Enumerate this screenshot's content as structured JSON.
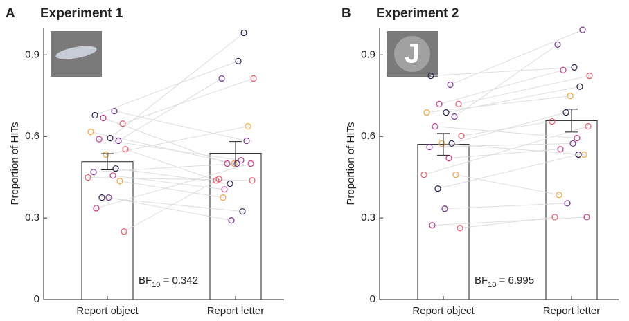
{
  "chart_data": [
    {
      "type": "bar",
      "panel": "A",
      "title": "Experiment 1",
      "ylabel": "Proportion of HITs",
      "categories": [
        "Report object",
        "Report letter"
      ],
      "values": [
        0.507,
        0.538
      ],
      "errors": [
        0.03,
        0.043
      ],
      "ylim": [
        0,
        1
      ],
      "yticks": [
        0,
        0.3,
        0.6,
        0.9
      ],
      "pairs": [
        [
          0.678,
          0.877
        ],
        [
          0.693,
          0.584
        ],
        [
          0.668,
          0.5
        ],
        [
          0.647,
          0.813
        ],
        [
          0.617,
          0.5
        ],
        [
          0.594,
          0.981
        ],
        [
          0.584,
          0.813
        ],
        [
          0.59,
          0.512
        ],
        [
          0.553,
          0.438
        ],
        [
          0.533,
          0.637
        ],
        [
          0.482,
          0.426
        ],
        [
          0.469,
          0.5
        ],
        [
          0.456,
          0.405
        ],
        [
          0.449,
          0.438
        ],
        [
          0.436,
          0.375
        ],
        [
          0.375,
          0.324
        ],
        [
          0.375,
          0.291
        ],
        [
          0.336,
          0.5
        ],
        [
          0.25,
          0.443
        ]
      ],
      "point_colors": [
        "#2b1d4f",
        "#7b3294",
        "#c2378a",
        "#e8566a",
        "#f5a03a"
      ],
      "bf_label": "BF",
      "bf_subscript": "10",
      "bf_value": " = 0.342"
    },
    {
      "type": "bar",
      "panel": "B",
      "title": "Experiment 2",
      "ylabel": "Proportion of HITs",
      "categories": [
        "Report object",
        "Report letter"
      ],
      "values": [
        0.571,
        0.658
      ],
      "errors": [
        0.04,
        0.042
      ],
      "ylim": [
        0,
        1
      ],
      "yticks": [
        0,
        0.3,
        0.6,
        0.9
      ],
      "image_letter": "J",
      "pairs": [
        [
          0.823,
          0.854
        ],
        [
          0.79,
          0.992
        ],
        [
          0.719,
          0.844
        ],
        [
          0.719,
          0.823
        ],
        [
          0.688,
          0.749
        ],
        [
          0.688,
          0.783
        ],
        [
          0.673,
          0.938
        ],
        [
          0.637,
          0.594
        ],
        [
          0.602,
          0.655
        ],
        [
          0.574,
          0.533
        ],
        [
          0.574,
          0.688
        ],
        [
          0.561,
          0.574
        ],
        [
          0.52,
          0.553
        ],
        [
          0.459,
          0.637
        ],
        [
          0.459,
          0.385
        ],
        [
          0.408,
          0.533
        ],
        [
          0.334,
          0.354
        ],
        [
          0.273,
          0.303
        ],
        [
          0.263,
          0.303
        ]
      ],
      "point_colors": [
        "#2b1d4f",
        "#7b3294",
        "#c2378a",
        "#e8566a",
        "#f5a03a"
      ],
      "bf_label": "BF",
      "bf_subscript": "10",
      "bf_value": " = 6.995"
    }
  ]
}
